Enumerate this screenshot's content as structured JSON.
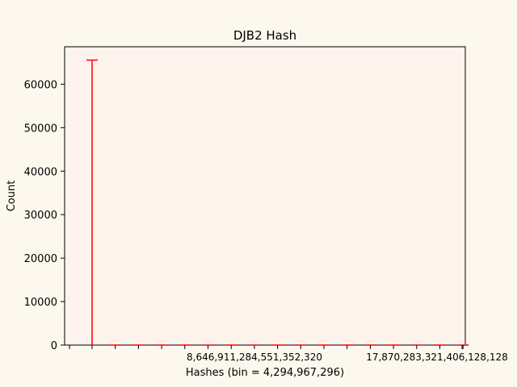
{
  "chart_data": {
    "type": "bar",
    "title": "DJB2 Hash",
    "xlabel": "Hashes (bin = 4,294,967,296)",
    "ylabel": "Count",
    "ylim": [
      0,
      68600
    ],
    "y_ticks": [
      0,
      10000,
      20000,
      30000,
      40000,
      50000,
      60000
    ],
    "y_tick_labels": [
      "0",
      "10000",
      "20000",
      "30000",
      "40000",
      "50000",
      "60000"
    ],
    "x_tick_labels": [
      "8,646,911,284,551,352,320",
      "17,870,283,321,406,128,128"
    ],
    "series_color": "#ff0000",
    "plot_background": "#fff3ee",
    "bins": 17,
    "values": [
      65536,
      0,
      0,
      0,
      0,
      0,
      0,
      0,
      0,
      0,
      0,
      0,
      0,
      0,
      0,
      0,
      0
    ]
  }
}
